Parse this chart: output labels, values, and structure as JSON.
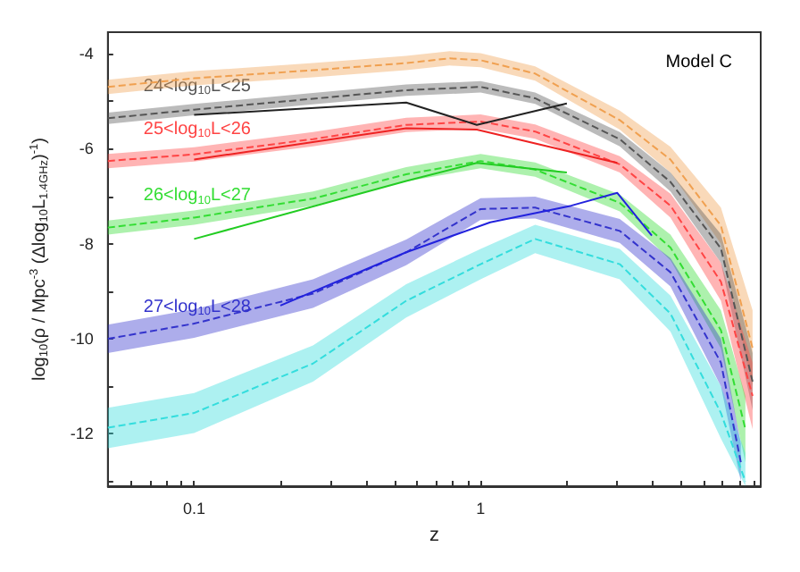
{
  "chart_data": {
    "type": "line",
    "xlabel": "z",
    "ylabel": "log$_{10}$(ρ / Mpc$^{-3}$ (Δlog$_{10}$L$_{1.4GHz}$)$^{-1}$)",
    "log": "x",
    "xlim": [
      0.05,
      9.5
    ],
    "ylim": [
      -13.1,
      -3.55
    ],
    "xticks": [
      {
        "value": 0.05,
        "label": null
      },
      {
        "value": 0.06,
        "label": null
      },
      {
        "value": 0.07,
        "label": null
      },
      {
        "value": 0.08,
        "label": null
      },
      {
        "value": 0.09,
        "label": null
      },
      0.1,
      {
        "value": 0.2,
        "label": null
      },
      {
        "value": 0.3,
        "label": null
      },
      {
        "value": 0.4,
        "label": null
      },
      {
        "value": 0.5,
        "label": null
      },
      {
        "value": 0.6,
        "label": null
      },
      {
        "value": 0.7,
        "label": null
      },
      {
        "value": 0.8,
        "label": null
      },
      {
        "value": 0.9,
        "label": null
      },
      1,
      {
        "value": 2,
        "label": null
      },
      {
        "value": 3,
        "label": null
      },
      {
        "value": 4,
        "label": null
      },
      {
        "value": 5,
        "label": null
      },
      {
        "value": 6,
        "label": null
      },
      {
        "value": 7,
        "label": null
      },
      {
        "value": 8,
        "label": null
      },
      {
        "value": 9,
        "label": null
      }
    ],
    "yticks": [
      {
        "value": -13,
        "label": null
      },
      -12,
      {
        "value": -11,
        "label": null
      },
      -10,
      {
        "value": -9,
        "label": null
      },
      -8,
      {
        "value": -7,
        "label": null
      },
      -6,
      {
        "value": -5,
        "label": null
      },
      -4
    ],
    "grid": false,
    "legend": false,
    "marker": "none",
    "annotations": [
      "Model C"
    ],
    "series": [
      {
        "color": "#f0a050",
        "line_style": "dashed",
        "x": [
          0.05,
          0.1,
          0.26,
          0.55,
          0.78,
          1,
          1.55,
          3.06,
          4.6,
          6.9,
          8.9
        ],
        "values": [
          -4.7,
          -4.52,
          -4.35,
          -4.2,
          -4.1,
          -4.14,
          -4.42,
          -5.4,
          -6.23,
          -7.62,
          -10.2
        ],
        "lower": [
          -4.85,
          -4.67,
          -4.5,
          -4.35,
          -4.25,
          -4.29,
          -4.57,
          -5.6,
          -6.5,
          -8.0,
          -11.0
        ],
        "upper": [
          -4.55,
          -4.37,
          -4.2,
          -4.05,
          -3.95,
          -3.99,
          -4.27,
          -5.2,
          -5.96,
          -7.24,
          -9.4
        ]
      },
      {
        "name": "24<log$_{10}$L<25",
        "color": "#555555",
        "line_style": "dashed",
        "x": [
          0.05,
          0.1,
          0.26,
          0.55,
          1,
          1.55,
          3.06,
          4.6,
          6.9,
          8.9
        ],
        "values": [
          -5.36,
          -5.18,
          -4.95,
          -4.77,
          -4.7,
          -4.94,
          -5.8,
          -6.7,
          -8.1,
          -10.9
        ],
        "lower": [
          -5.48,
          -5.3,
          -5.07,
          -4.89,
          -4.82,
          -5.06,
          -5.95,
          -6.9,
          -8.4,
          -11.5
        ],
        "upper": [
          -5.24,
          -5.06,
          -4.83,
          -4.65,
          -4.58,
          -4.82,
          -5.65,
          -6.5,
          -7.8,
          -10.3
        ]
      },
      {
        "name": "25<log$_{10}$L<26",
        "color": "#ff4444",
        "line_style": "dashed",
        "x": [
          0.05,
          0.1,
          0.26,
          0.55,
          1,
          1.55,
          3.06,
          4.6,
          6.9,
          8.9
        ],
        "values": [
          -6.26,
          -6.12,
          -5.8,
          -5.5,
          -5.43,
          -5.64,
          -6.33,
          -7.2,
          -8.8,
          -11.2
        ],
        "lower": [
          -6.41,
          -6.27,
          -5.95,
          -5.65,
          -5.58,
          -5.79,
          -6.5,
          -7.45,
          -9.2,
          -11.9
        ],
        "upper": [
          -6.11,
          -5.97,
          -5.65,
          -5.35,
          -5.28,
          -5.49,
          -6.16,
          -6.95,
          -8.4,
          -10.5
        ]
      },
      {
        "name": "26<log$_{10}$L<27",
        "color": "#33dd33",
        "line_style": "dashed",
        "x": [
          0.05,
          0.1,
          0.26,
          0.55,
          1,
          1.55,
          3.06,
          4.6,
          6.9,
          8.4
        ],
        "values": [
          -7.66,
          -7.45,
          -7.05,
          -6.54,
          -6.26,
          -6.44,
          -7.14,
          -8.08,
          -9.82,
          -11.9
        ],
        "lower": [
          -7.81,
          -7.6,
          -7.2,
          -6.69,
          -6.41,
          -6.59,
          -7.32,
          -8.35,
          -10.2,
          -12.6
        ],
        "upper": [
          -7.51,
          -7.3,
          -6.9,
          -6.39,
          -6.11,
          -6.29,
          -6.96,
          -7.81,
          -9.4,
          -11.2
        ]
      },
      {
        "name": "27<log$_{10}$L<28",
        "color": "#3333cc",
        "line_style": "dashed",
        "x": [
          0.05,
          0.1,
          0.26,
          0.55,
          1,
          1.55,
          3.06,
          4.6,
          6.9,
          8.1
        ],
        "values": [
          -10.0,
          -9.68,
          -9.05,
          -8.18,
          -7.27,
          -7.24,
          -7.73,
          -8.6,
          -10.5,
          -12.6
        ],
        "lower": [
          -10.3,
          -9.98,
          -9.35,
          -8.45,
          -7.5,
          -7.47,
          -7.98,
          -8.9,
          -11.0,
          -13.0
        ],
        "upper": [
          -9.7,
          -9.38,
          -8.75,
          -7.91,
          -7.04,
          -7.01,
          -7.48,
          -8.3,
          -10.0,
          -12.2
        ]
      },
      {
        "color": "#33dddd",
        "line_style": "dashed",
        "x": [
          0.05,
          0.1,
          0.26,
          0.55,
          1,
          1.55,
          3.06,
          4.6,
          6.9,
          8.4
        ],
        "values": [
          -11.87,
          -11.56,
          -10.52,
          -9.2,
          -8.43,
          -7.9,
          -8.43,
          -9.47,
          -11.56,
          -13.0
        ],
        "lower": [
          -12.3,
          -11.98,
          -10.9,
          -9.55,
          -8.75,
          -8.2,
          -8.75,
          -9.85,
          -12.1,
          -13.1
        ],
        "upper": [
          -11.45,
          -11.14,
          -10.14,
          -8.85,
          -8.11,
          -7.6,
          -8.11,
          -9.09,
          -11.0,
          -12.4
        ]
      },
      {
        "color": "#222222",
        "line_style": "solid",
        "x": [
          0.1,
          0.55,
          0.97,
          2.0
        ],
        "values": [
          -5.29,
          -5.03,
          -5.5,
          -5.05
        ]
      },
      {
        "color": "#ee2222",
        "line_style": "solid",
        "x": [
          0.1,
          0.55,
          0.97,
          3.0
        ],
        "values": [
          -6.23,
          -5.57,
          -5.6,
          -6.3
        ]
      },
      {
        "color": "#22cc22",
        "line_style": "solid",
        "x": [
          0.1,
          0.55,
          0.97,
          2.0
        ],
        "values": [
          -7.9,
          -6.68,
          -6.3,
          -6.5
        ]
      },
      {
        "color": "#2222dd",
        "line_style": "solid",
        "x": [
          0.2,
          0.55,
          1.08,
          2.07,
          3.0,
          3.96
        ],
        "values": [
          -9.3,
          -8.18,
          -7.55,
          -7.2,
          -6.93,
          -7.83
        ]
      }
    ]
  }
}
